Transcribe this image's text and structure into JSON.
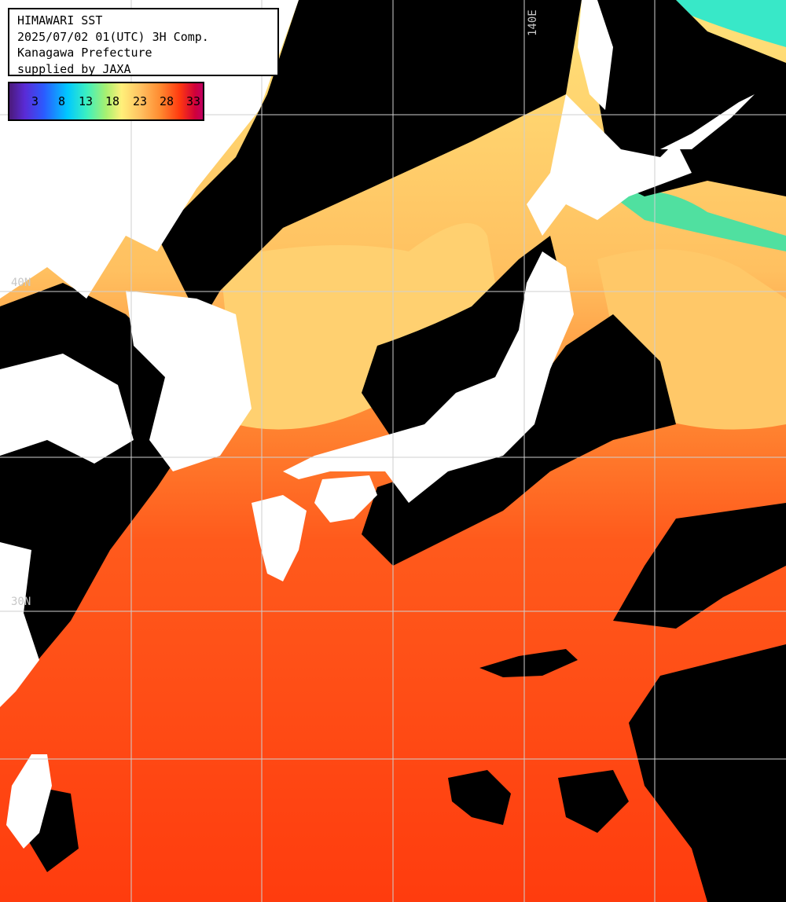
{
  "title_box": {
    "line1": "HIMAWARI SST",
    "line2": "2025/07/02 01(UTC) 3H Comp.",
    "line3": "Kanagawa Prefecture",
    "line4": "supplied by JAXA"
  },
  "legend": {
    "labels": [
      "3",
      "8",
      "13",
      "18",
      "23",
      "28",
      "33"
    ]
  },
  "grid_labels": {
    "lon_140e": "140E",
    "lat_40n": "40N",
    "lat_30n": "30N"
  },
  "colors": {
    "land": "#ffffff",
    "cloud": "#000000",
    "grid": "#cccccc",
    "sst_warm": "#ff4a14",
    "sst_mild": "#ff9a3a",
    "sst_cool": "#ffe080",
    "sst_cold": "#3ce0b0"
  }
}
